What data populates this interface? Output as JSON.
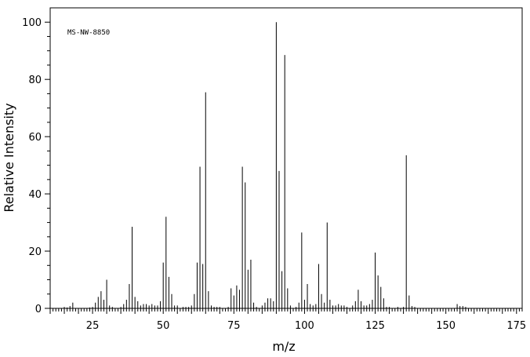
{
  "chart_data": {
    "type": "bar",
    "annotation": "MS-NW-8850",
    "xlabel": "m/z",
    "ylabel": "Relative Intensity",
    "xlim": [
      10,
      177
    ],
    "ylim": [
      0,
      105
    ],
    "x_ticks": [
      25,
      50,
      75,
      100,
      125,
      150,
      175
    ],
    "y_ticks": [
      0,
      20,
      40,
      60,
      80,
      100
    ],
    "grid": false,
    "peaks": [
      {
        "mz": 15,
        "intensity": 0.5
      },
      {
        "mz": 16,
        "intensity": 0.3
      },
      {
        "mz": 17,
        "intensity": 0.8
      },
      {
        "mz": 18,
        "intensity": 2.0
      },
      {
        "mz": 24,
        "intensity": 0.3
      },
      {
        "mz": 25,
        "intensity": 0.5
      },
      {
        "mz": 26,
        "intensity": 2.0
      },
      {
        "mz": 27,
        "intensity": 4.0
      },
      {
        "mz": 28,
        "intensity": 6.0
      },
      {
        "mz": 29,
        "intensity": 3.0
      },
      {
        "mz": 30,
        "intensity": 10.0
      },
      {
        "mz": 31,
        "intensity": 1.0
      },
      {
        "mz": 32,
        "intensity": 0.5
      },
      {
        "mz": 35,
        "intensity": 0.5
      },
      {
        "mz": 36,
        "intensity": 1.5
      },
      {
        "mz": 37,
        "intensity": 3.0
      },
      {
        "mz": 38,
        "intensity": 8.5
      },
      {
        "mz": 39,
        "intensity": 28.5
      },
      {
        "mz": 40,
        "intensity": 4.0
      },
      {
        "mz": 41,
        "intensity": 2.5
      },
      {
        "mz": 42,
        "intensity": 1.0
      },
      {
        "mz": 43,
        "intensity": 1.5
      },
      {
        "mz": 44,
        "intensity": 1.5
      },
      {
        "mz": 45,
        "intensity": 1.0
      },
      {
        "mz": 46,
        "intensity": 1.5
      },
      {
        "mz": 47,
        "intensity": 1.0
      },
      {
        "mz": 48,
        "intensity": 1.0
      },
      {
        "mz": 49,
        "intensity": 2.5
      },
      {
        "mz": 50,
        "intensity": 16.0
      },
      {
        "mz": 51,
        "intensity": 32.0
      },
      {
        "mz": 52,
        "intensity": 11.0
      },
      {
        "mz": 53,
        "intensity": 5.0
      },
      {
        "mz": 54,
        "intensity": 1.0
      },
      {
        "mz": 55,
        "intensity": 1.0
      },
      {
        "mz": 57,
        "intensity": 0.5
      },
      {
        "mz": 58,
        "intensity": 0.5
      },
      {
        "mz": 59,
        "intensity": 0.5
      },
      {
        "mz": 60,
        "intensity": 1.0
      },
      {
        "mz": 61,
        "intensity": 5.0
      },
      {
        "mz": 62,
        "intensity": 16.0
      },
      {
        "mz": 63,
        "intensity": 49.5
      },
      {
        "mz": 64,
        "intensity": 15.5
      },
      {
        "mz": 65,
        "intensity": 75.5
      },
      {
        "mz": 66,
        "intensity": 6.0
      },
      {
        "mz": 67,
        "intensity": 1.0
      },
      {
        "mz": 68,
        "intensity": 0.5
      },
      {
        "mz": 69,
        "intensity": 0.5
      },
      {
        "mz": 70,
        "intensity": 0.5
      },
      {
        "mz": 73,
        "intensity": 0.5
      },
      {
        "mz": 74,
        "intensity": 7.0
      },
      {
        "mz": 75,
        "intensity": 4.5
      },
      {
        "mz": 76,
        "intensity": 8.0
      },
      {
        "mz": 77,
        "intensity": 6.5
      },
      {
        "mz": 78,
        "intensity": 49.5
      },
      {
        "mz": 79,
        "intensity": 44.0
      },
      {
        "mz": 80,
        "intensity": 13.5
      },
      {
        "mz": 81,
        "intensity": 17.0
      },
      {
        "mz": 82,
        "intensity": 2.0
      },
      {
        "mz": 83,
        "intensity": 0.5
      },
      {
        "mz": 85,
        "intensity": 1.0
      },
      {
        "mz": 86,
        "intensity": 2.0
      },
      {
        "mz": 87,
        "intensity": 3.5
      },
      {
        "mz": 88,
        "intensity": 3.5
      },
      {
        "mz": 89,
        "intensity": 2.5
      },
      {
        "mz": 90,
        "intensity": 100.0
      },
      {
        "mz": 91,
        "intensity": 48.0
      },
      {
        "mz": 92,
        "intensity": 13.0
      },
      {
        "mz": 93,
        "intensity": 88.5
      },
      {
        "mz": 94,
        "intensity": 7.0
      },
      {
        "mz": 95,
        "intensity": 1.0
      },
      {
        "mz": 97,
        "intensity": 0.5
      },
      {
        "mz": 98,
        "intensity": 2.0
      },
      {
        "mz": 99,
        "intensity": 26.5
      },
      {
        "mz": 100,
        "intensity": 3.0
      },
      {
        "mz": 101,
        "intensity": 8.5
      },
      {
        "mz": 102,
        "intensity": 1.5
      },
      {
        "mz": 103,
        "intensity": 1.0
      },
      {
        "mz": 104,
        "intensity": 1.5
      },
      {
        "mz": 105,
        "intensity": 15.5
      },
      {
        "mz": 106,
        "intensity": 5.0
      },
      {
        "mz": 107,
        "intensity": 2.0
      },
      {
        "mz": 108,
        "intensity": 30.0
      },
      {
        "mz": 109,
        "intensity": 3.0
      },
      {
        "mz": 110,
        "intensity": 1.0
      },
      {
        "mz": 111,
        "intensity": 1.0
      },
      {
        "mz": 112,
        "intensity": 1.5
      },
      {
        "mz": 113,
        "intensity": 1.0
      },
      {
        "mz": 114,
        "intensity": 1.0
      },
      {
        "mz": 115,
        "intensity": 0.5
      },
      {
        "mz": 117,
        "intensity": 1.0
      },
      {
        "mz": 118,
        "intensity": 2.5
      },
      {
        "mz": 119,
        "intensity": 6.5
      },
      {
        "mz": 120,
        "intensity": 2.5
      },
      {
        "mz": 121,
        "intensity": 1.0
      },
      {
        "mz": 122,
        "intensity": 1.0
      },
      {
        "mz": 123,
        "intensity": 1.5
      },
      {
        "mz": 124,
        "intensity": 3.0
      },
      {
        "mz": 125,
        "intensity": 19.5
      },
      {
        "mz": 126,
        "intensity": 11.5
      },
      {
        "mz": 127,
        "intensity": 7.5
      },
      {
        "mz": 128,
        "intensity": 3.5
      },
      {
        "mz": 129,
        "intensity": 0.5
      },
      {
        "mz": 130,
        "intensity": 0.5
      },
      {
        "mz": 133,
        "intensity": 0.5
      },
      {
        "mz": 135,
        "intensity": 0.5
      },
      {
        "mz": 136,
        "intensity": 53.5
      },
      {
        "mz": 137,
        "intensity": 4.5
      },
      {
        "mz": 138,
        "intensity": 0.8
      },
      {
        "mz": 139,
        "intensity": 0.5
      },
      {
        "mz": 154,
        "intensity": 1.5
      },
      {
        "mz": 155,
        "intensity": 0.8
      },
      {
        "mz": 156,
        "intensity": 0.8
      },
      {
        "mz": 157,
        "intensity": 0.5
      }
    ]
  }
}
